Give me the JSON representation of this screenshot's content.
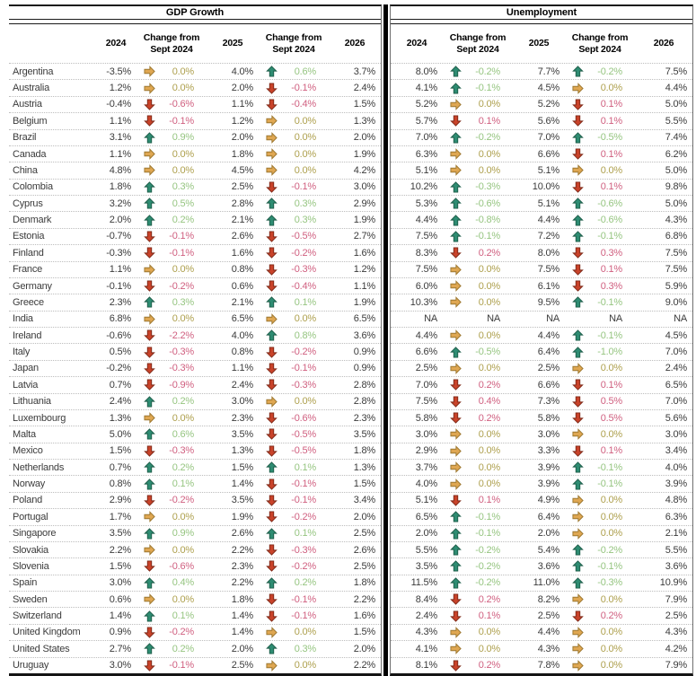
{
  "na_label": "NA",
  "colors": {
    "improve_arrow": "#2E8C72",
    "improve_text": "#96C581",
    "worsen_arrow": "#C9432A",
    "worsen_text": "#D06080",
    "nochange_arrow": "#DFA752",
    "nochange_text": "#AEA04E",
    "body_text": "#3b3b3b",
    "rule": "#1a1a1a",
    "row_separator": "#bdbdbd"
  },
  "chart_data": {
    "type": "table",
    "sections": [
      "GDP Growth",
      "Unemployment"
    ],
    "columns": [
      "2024",
      "Change from Sept 2024",
      "2025",
      "Change from Sept 2024",
      "2026"
    ],
    "arrow_legend": {
      "up": "green up arrow (improvement)",
      "down": "red down arrow (deterioration)",
      "flat": "orange right arrow (no change)"
    },
    "rows": [
      {
        "country": "Argentina",
        "gdp": [
          "-3.5%",
          [
            "flat",
            "0.0%"
          ],
          "4.0%",
          [
            "up",
            "0.6%"
          ],
          "3.7%"
        ],
        "unemp": [
          "8.0%",
          [
            "up",
            "-0.2%"
          ],
          "7.7%",
          [
            "up",
            "-0.2%"
          ],
          "7.5%"
        ]
      },
      {
        "country": "Australia",
        "gdp": [
          "1.2%",
          [
            "flat",
            "0.0%"
          ],
          "2.0%",
          [
            "down",
            "-0.1%"
          ],
          "2.4%"
        ],
        "unemp": [
          "4.1%",
          [
            "up",
            "-0.1%"
          ],
          "4.5%",
          [
            "flat",
            "0.0%"
          ],
          "4.4%"
        ]
      },
      {
        "country": "Austria",
        "gdp": [
          "-0.4%",
          [
            "down",
            "-0.6%"
          ],
          "1.1%",
          [
            "down",
            "-0.4%"
          ],
          "1.5%"
        ],
        "unemp": [
          "5.2%",
          [
            "flat",
            "0.0%"
          ],
          "5.2%",
          [
            "down",
            "0.1%"
          ],
          "5.0%"
        ]
      },
      {
        "country": "Belgium",
        "gdp": [
          "1.1%",
          [
            "down",
            "-0.1%"
          ],
          "1.2%",
          [
            "flat",
            "0.0%"
          ],
          "1.3%"
        ],
        "unemp": [
          "5.7%",
          [
            "down",
            "0.1%"
          ],
          "5.6%",
          [
            "down",
            "0.1%"
          ],
          "5.5%"
        ]
      },
      {
        "country": "Brazil",
        "gdp": [
          "3.1%",
          [
            "up",
            "0.9%"
          ],
          "2.0%",
          [
            "flat",
            "0.0%"
          ],
          "2.0%"
        ],
        "unemp": [
          "7.0%",
          [
            "up",
            "-0.2%"
          ],
          "7.0%",
          [
            "up",
            "-0.5%"
          ],
          "7.4%"
        ]
      },
      {
        "country": "Canada",
        "gdp": [
          "1.1%",
          [
            "flat",
            "0.0%"
          ],
          "1.8%",
          [
            "flat",
            "0.0%"
          ],
          "1.9%"
        ],
        "unemp": [
          "6.3%",
          [
            "flat",
            "0.0%"
          ],
          "6.6%",
          [
            "down",
            "0.1%"
          ],
          "6.2%"
        ]
      },
      {
        "country": "China",
        "gdp": [
          "4.8%",
          [
            "flat",
            "0.0%"
          ],
          "4.5%",
          [
            "flat",
            "0.0%"
          ],
          "4.2%"
        ],
        "unemp": [
          "5.1%",
          [
            "flat",
            "0.0%"
          ],
          "5.1%",
          [
            "flat",
            "0.0%"
          ],
          "5.0%"
        ]
      },
      {
        "country": "Colombia",
        "gdp": [
          "1.8%",
          [
            "up",
            "0.3%"
          ],
          "2.5%",
          [
            "down",
            "-0.1%"
          ],
          "3.0%"
        ],
        "unemp": [
          "10.2%",
          [
            "up",
            "-0.3%"
          ],
          "10.0%",
          [
            "down",
            "0.1%"
          ],
          "9.8%"
        ]
      },
      {
        "country": "Cyprus",
        "gdp": [
          "3.2%",
          [
            "up",
            "0.5%"
          ],
          "2.8%",
          [
            "up",
            "0.3%"
          ],
          "2.9%"
        ],
        "unemp": [
          "5.3%",
          [
            "up",
            "-0.6%"
          ],
          "5.1%",
          [
            "up",
            "-0.6%"
          ],
          "5.0%"
        ]
      },
      {
        "country": "Denmark",
        "gdp": [
          "2.0%",
          [
            "up",
            "0.2%"
          ],
          "2.1%",
          [
            "up",
            "0.3%"
          ],
          "1.9%"
        ],
        "unemp": [
          "4.4%",
          [
            "up",
            "-0.8%"
          ],
          "4.4%",
          [
            "up",
            "-0.6%"
          ],
          "4.3%"
        ]
      },
      {
        "country": "Estonia",
        "gdp": [
          "-0.7%",
          [
            "down",
            "-0.1%"
          ],
          "2.6%",
          [
            "down",
            "-0.5%"
          ],
          "2.7%"
        ],
        "unemp": [
          "7.5%",
          [
            "up",
            "-0.1%"
          ],
          "7.2%",
          [
            "up",
            "-0.1%"
          ],
          "6.8%"
        ]
      },
      {
        "country": "Finland",
        "gdp": [
          "-0.3%",
          [
            "down",
            "-0.1%"
          ],
          "1.6%",
          [
            "down",
            "-0.2%"
          ],
          "1.6%"
        ],
        "unemp": [
          "8.3%",
          [
            "down",
            "0.2%"
          ],
          "8.0%",
          [
            "down",
            "0.3%"
          ],
          "7.5%"
        ]
      },
      {
        "country": "France",
        "gdp": [
          "1.1%",
          [
            "flat",
            "0.0%"
          ],
          "0.8%",
          [
            "down",
            "-0.3%"
          ],
          "1.2%"
        ],
        "unemp": [
          "7.5%",
          [
            "flat",
            "0.0%"
          ],
          "7.5%",
          [
            "down",
            "0.1%"
          ],
          "7.5%"
        ]
      },
      {
        "country": "Germany",
        "gdp": [
          "-0.1%",
          [
            "down",
            "-0.2%"
          ],
          "0.6%",
          [
            "down",
            "-0.4%"
          ],
          "1.1%"
        ],
        "unemp": [
          "6.0%",
          [
            "flat",
            "0.0%"
          ],
          "6.1%",
          [
            "down",
            "0.3%"
          ],
          "5.9%"
        ]
      },
      {
        "country": "Greece",
        "gdp": [
          "2.3%",
          [
            "up",
            "0.3%"
          ],
          "2.1%",
          [
            "up",
            "0.1%"
          ],
          "1.9%"
        ],
        "unemp": [
          "10.3%",
          [
            "flat",
            "0.0%"
          ],
          "9.5%",
          [
            "up",
            "-0.1%"
          ],
          "9.0%"
        ]
      },
      {
        "country": "India",
        "gdp": [
          "6.8%",
          [
            "flat",
            "0.0%"
          ],
          "6.5%",
          [
            "flat",
            "0.0%"
          ],
          "6.5%"
        ],
        "unemp": [
          "NA",
          [
            "na",
            "NA"
          ],
          "NA",
          [
            "na",
            "NA"
          ],
          "NA"
        ]
      },
      {
        "country": "Ireland",
        "gdp": [
          "-0.6%",
          [
            "down",
            "-2.2%"
          ],
          "4.0%",
          [
            "up",
            "0.8%"
          ],
          "3.6%"
        ],
        "unemp": [
          "4.4%",
          [
            "flat",
            "0.0%"
          ],
          "4.4%",
          [
            "up",
            "-0.1%"
          ],
          "4.5%"
        ]
      },
      {
        "country": "Italy",
        "gdp": [
          "0.5%",
          [
            "down",
            "-0.3%"
          ],
          "0.8%",
          [
            "down",
            "-0.2%"
          ],
          "0.9%"
        ],
        "unemp": [
          "6.6%",
          [
            "up",
            "-0.5%"
          ],
          "6.4%",
          [
            "up",
            "-1.0%"
          ],
          "7.0%"
        ]
      },
      {
        "country": "Japan",
        "gdp": [
          "-0.2%",
          [
            "down",
            "-0.3%"
          ],
          "1.1%",
          [
            "down",
            "-0.1%"
          ],
          "0.9%"
        ],
        "unemp": [
          "2.5%",
          [
            "flat",
            "0.0%"
          ],
          "2.5%",
          [
            "flat",
            "0.0%"
          ],
          "2.4%"
        ]
      },
      {
        "country": "Latvia",
        "gdp": [
          "0.7%",
          [
            "down",
            "-0.9%"
          ],
          "2.4%",
          [
            "down",
            "-0.3%"
          ],
          "2.8%"
        ],
        "unemp": [
          "7.0%",
          [
            "down",
            "0.2%"
          ],
          "6.6%",
          [
            "down",
            "0.1%"
          ],
          "6.5%"
        ]
      },
      {
        "country": "Lithuania",
        "gdp": [
          "2.4%",
          [
            "up",
            "0.2%"
          ],
          "3.0%",
          [
            "flat",
            "0.0%"
          ],
          "2.8%"
        ],
        "unemp": [
          "7.5%",
          [
            "down",
            "0.4%"
          ],
          "7.3%",
          [
            "down",
            "0.5%"
          ],
          "7.0%"
        ]
      },
      {
        "country": "Luxembourg",
        "gdp": [
          "1.3%",
          [
            "flat",
            "0.0%"
          ],
          "2.3%",
          [
            "down",
            "-0.6%"
          ],
          "2.3%"
        ],
        "unemp": [
          "5.8%",
          [
            "down",
            "0.2%"
          ],
          "5.8%",
          [
            "down",
            "0.5%"
          ],
          "5.6%"
        ]
      },
      {
        "country": "Malta",
        "gdp": [
          "5.0%",
          [
            "up",
            "0.6%"
          ],
          "3.5%",
          [
            "down",
            "-0.5%"
          ],
          "3.5%"
        ],
        "unemp": [
          "3.0%",
          [
            "flat",
            "0.0%"
          ],
          "3.0%",
          [
            "flat",
            "0.0%"
          ],
          "3.0%"
        ]
      },
      {
        "country": "Mexico",
        "gdp": [
          "1.5%",
          [
            "down",
            "-0.3%"
          ],
          "1.3%",
          [
            "down",
            "-0.5%"
          ],
          "1.8%"
        ],
        "unemp": [
          "2.9%",
          [
            "flat",
            "0.0%"
          ],
          "3.3%",
          [
            "down",
            "0.1%"
          ],
          "3.4%"
        ]
      },
      {
        "country": "Netherlands",
        "gdp": [
          "0.7%",
          [
            "up",
            "0.2%"
          ],
          "1.5%",
          [
            "up",
            "0.1%"
          ],
          "1.3%"
        ],
        "unemp": [
          "3.7%",
          [
            "flat",
            "0.0%"
          ],
          "3.9%",
          [
            "up",
            "-0.1%"
          ],
          "4.0%"
        ]
      },
      {
        "country": "Norway",
        "gdp": [
          "0.8%",
          [
            "up",
            "0.1%"
          ],
          "1.4%",
          [
            "down",
            "-0.1%"
          ],
          "1.5%"
        ],
        "unemp": [
          "4.0%",
          [
            "flat",
            "0.0%"
          ],
          "3.9%",
          [
            "up",
            "-0.1%"
          ],
          "3.9%"
        ]
      },
      {
        "country": "Poland",
        "gdp": [
          "2.9%",
          [
            "down",
            "-0.2%"
          ],
          "3.5%",
          [
            "down",
            "-0.1%"
          ],
          "3.4%"
        ],
        "unemp": [
          "5.1%",
          [
            "down",
            "0.1%"
          ],
          "4.9%",
          [
            "flat",
            "0.0%"
          ],
          "4.8%"
        ]
      },
      {
        "country": "Portugal",
        "gdp": [
          "1.7%",
          [
            "flat",
            "0.0%"
          ],
          "1.9%",
          [
            "down",
            "-0.2%"
          ],
          "2.0%"
        ],
        "unemp": [
          "6.5%",
          [
            "up",
            "-0.1%"
          ],
          "6.4%",
          [
            "flat",
            "0.0%"
          ],
          "6.3%"
        ]
      },
      {
        "country": "Singapore",
        "gdp": [
          "3.5%",
          [
            "up",
            "0.9%"
          ],
          "2.6%",
          [
            "up",
            "0.1%"
          ],
          "2.5%"
        ],
        "unemp": [
          "2.0%",
          [
            "up",
            "-0.1%"
          ],
          "2.0%",
          [
            "flat",
            "0.0%"
          ],
          "2.1%"
        ]
      },
      {
        "country": "Slovakia",
        "gdp": [
          "2.2%",
          [
            "flat",
            "0.0%"
          ],
          "2.2%",
          [
            "down",
            "-0.3%"
          ],
          "2.6%"
        ],
        "unemp": [
          "5.5%",
          [
            "up",
            "-0.2%"
          ],
          "5.4%",
          [
            "up",
            "-0.2%"
          ],
          "5.5%"
        ]
      },
      {
        "country": "Slovenia",
        "gdp": [
          "1.5%",
          [
            "down",
            "-0.6%"
          ],
          "2.3%",
          [
            "down",
            "-0.2%"
          ],
          "2.5%"
        ],
        "unemp": [
          "3.5%",
          [
            "up",
            "-0.2%"
          ],
          "3.6%",
          [
            "up",
            "-0.1%"
          ],
          "3.6%"
        ]
      },
      {
        "country": "Spain",
        "gdp": [
          "3.0%",
          [
            "up",
            "0.4%"
          ],
          "2.2%",
          [
            "up",
            "0.2%"
          ],
          "1.8%"
        ],
        "unemp": [
          "11.5%",
          [
            "up",
            "-0.2%"
          ],
          "11.0%",
          [
            "up",
            "-0.3%"
          ],
          "10.9%"
        ]
      },
      {
        "country": "Sweden",
        "gdp": [
          "0.6%",
          [
            "flat",
            "0.0%"
          ],
          "1.8%",
          [
            "down",
            "-0.1%"
          ],
          "2.2%"
        ],
        "unemp": [
          "8.4%",
          [
            "down",
            "0.2%"
          ],
          "8.2%",
          [
            "flat",
            "0.0%"
          ],
          "7.9%"
        ]
      },
      {
        "country": "Switzerland",
        "gdp": [
          "1.4%",
          [
            "up",
            "0.1%"
          ],
          "1.4%",
          [
            "down",
            "-0.1%"
          ],
          "1.6%"
        ],
        "unemp": [
          "2.4%",
          [
            "down",
            "0.1%"
          ],
          "2.5%",
          [
            "down",
            "0.2%"
          ],
          "2.5%"
        ]
      },
      {
        "country": "United Kingdom",
        "gdp": [
          "0.9%",
          [
            "down",
            "-0.2%"
          ],
          "1.4%",
          [
            "flat",
            "0.0%"
          ],
          "1.5%"
        ],
        "unemp": [
          "4.3%",
          [
            "flat",
            "0.0%"
          ],
          "4.4%",
          [
            "flat",
            "0.0%"
          ],
          "4.3%"
        ]
      },
      {
        "country": "United States",
        "gdp": [
          "2.7%",
          [
            "up",
            "0.2%"
          ],
          "2.0%",
          [
            "up",
            "0.3%"
          ],
          "2.0%"
        ],
        "unemp": [
          "4.1%",
          [
            "flat",
            "0.0%"
          ],
          "4.3%",
          [
            "flat",
            "0.0%"
          ],
          "4.2%"
        ]
      },
      {
        "country": "Uruguay",
        "gdp": [
          "3.0%",
          [
            "down",
            "-0.1%"
          ],
          "2.5%",
          [
            "flat",
            "0.0%"
          ],
          "2.2%"
        ],
        "unemp": [
          "8.1%",
          [
            "down",
            "0.2%"
          ],
          "7.8%",
          [
            "flat",
            "0.0%"
          ],
          "7.9%"
        ]
      }
    ]
  }
}
